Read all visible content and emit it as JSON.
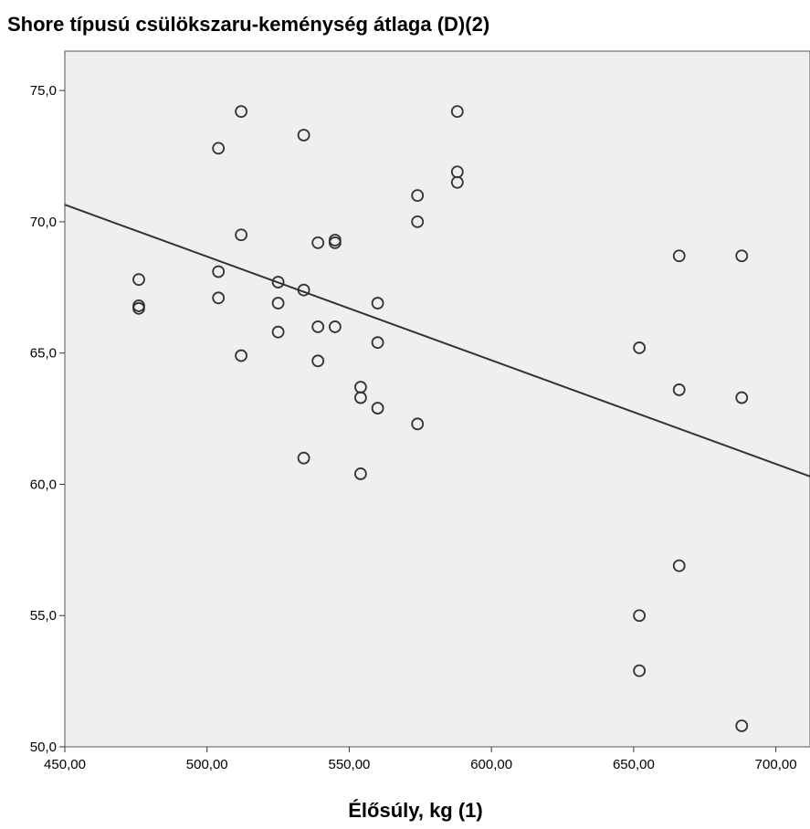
{
  "chart_data": {
    "type": "scatter",
    "title": "Shore típusú csülökszaru-keménység átlaga (D)(2)",
    "xlabel": "Élősúly, kg (1)",
    "ylabel": "",
    "xlim": [
      450,
      712
    ],
    "ylim": [
      50,
      76.5
    ],
    "x_ticks": [
      450,
      500,
      550,
      600,
      650,
      700
    ],
    "y_ticks": [
      50,
      55,
      60,
      65,
      70,
      75
    ],
    "x_tick_labels": [
      "450,00",
      "500,00",
      "550,00",
      "600,00",
      "650,00",
      "700,00"
    ],
    "y_tick_labels": [
      "50,0",
      "55,0",
      "60,0",
      "65,0",
      "70,0",
      "75,0"
    ],
    "grid": false,
    "legend": "none",
    "plot_background": "#efefef",
    "marker_color": "#333333",
    "marker_style": "hollow-circle",
    "points": [
      {
        "x": 476,
        "y": 67.8
      },
      {
        "x": 476,
        "y": 66.8
      },
      {
        "x": 476,
        "y": 66.7
      },
      {
        "x": 504,
        "y": 72.8
      },
      {
        "x": 504,
        "y": 68.1
      },
      {
        "x": 504,
        "y": 67.1
      },
      {
        "x": 512,
        "y": 74.2
      },
      {
        "x": 512,
        "y": 69.5
      },
      {
        "x": 512,
        "y": 64.9
      },
      {
        "x": 525,
        "y": 67.7
      },
      {
        "x": 525,
        "y": 66.9
      },
      {
        "x": 525,
        "y": 65.8
      },
      {
        "x": 534,
        "y": 73.3
      },
      {
        "x": 534,
        "y": 67.4
      },
      {
        "x": 534,
        "y": 61.0
      },
      {
        "x": 539,
        "y": 69.2
      },
      {
        "x": 539,
        "y": 66.0
      },
      {
        "x": 539,
        "y": 64.7
      },
      {
        "x": 545,
        "y": 69.3
      },
      {
        "x": 545,
        "y": 69.2
      },
      {
        "x": 545,
        "y": 66.0
      },
      {
        "x": 554,
        "y": 63.7
      },
      {
        "x": 554,
        "y": 63.3
      },
      {
        "x": 554,
        "y": 60.4
      },
      {
        "x": 560,
        "y": 66.9
      },
      {
        "x": 560,
        "y": 65.4
      },
      {
        "x": 560,
        "y": 62.9
      },
      {
        "x": 574,
        "y": 71.0
      },
      {
        "x": 574,
        "y": 70.0
      },
      {
        "x": 574,
        "y": 62.3
      },
      {
        "x": 588,
        "y": 74.2
      },
      {
        "x": 588,
        "y": 71.9
      },
      {
        "x": 588,
        "y": 71.5
      },
      {
        "x": 652,
        "y": 65.2
      },
      {
        "x": 652,
        "y": 55.0
      },
      {
        "x": 652,
        "y": 52.9
      },
      {
        "x": 666,
        "y": 68.7
      },
      {
        "x": 666,
        "y": 63.6
      },
      {
        "x": 666,
        "y": 56.9
      },
      {
        "x": 688,
        "y": 68.7
      },
      {
        "x": 688,
        "y": 63.3
      },
      {
        "x": 688,
        "y": 50.8
      }
    ],
    "fit_line": {
      "x": [
        450,
        712
      ],
      "y": [
        70.65,
        60.3
      ]
    }
  }
}
